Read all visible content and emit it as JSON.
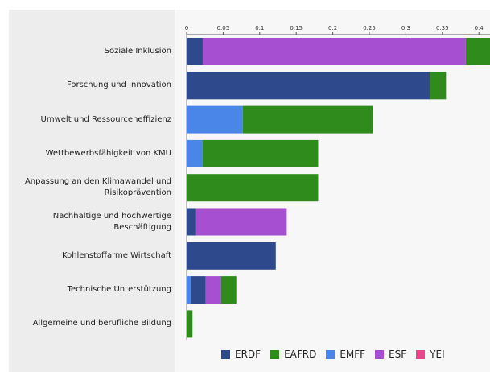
{
  "chart_data": {
    "type": "bar",
    "orientation": "horizontal",
    "stacked": true,
    "categories": [
      "Soziale Inklusion",
      "Forschung und Innovation",
      "Umwelt und Ressourceneffizienz",
      "Wettbewerbsfähigkeit von KMU",
      "Anpassung an den Klimawandel und Risikoprävention",
      "Nachhaltige und hochwertige Beschäftigung",
      "Kohlenstoffarme Wirtschaft",
      "Technische Unterstützung",
      "Allgemeine und berufliche Bildung"
    ],
    "series": [
      {
        "name": "ERDF",
        "color": "#2e4a8c",
        "values": [
          0.022,
          0.333,
          0,
          0,
          0,
          0.012,
          0.122,
          0.02,
          0
        ]
      },
      {
        "name": "EAFRD",
        "color": "#2e8b1c",
        "values": [
          0.045,
          0.022,
          0.178,
          0.158,
          0.18,
          0,
          0,
          0.021,
          0.008
        ]
      },
      {
        "name": "EMFF",
        "color": "#4a86e8",
        "values": [
          0,
          0,
          0.077,
          0.022,
          0,
          0,
          0,
          0.006,
          0
        ]
      },
      {
        "name": "ESF",
        "color": "#a64fd0",
        "values": [
          0.36,
          0,
          0,
          0,
          0,
          0.125,
          0,
          0.021,
          0
        ]
      },
      {
        "name": "YEI",
        "color": "#e8488a",
        "values": [
          0,
          0,
          0,
          0,
          0,
          0,
          0,
          0,
          0
        ]
      }
    ],
    "stack_order": [
      "EMFF",
      "ERDF",
      "ESF",
      "EAFRD",
      "YEI"
    ],
    "xlim": [
      0,
      0.41
    ],
    "xticks": [
      "0",
      "0.05",
      "0.1",
      "0.15",
      "0.2",
      "0.25",
      "0.3",
      "0.35",
      "0.4"
    ],
    "xtick_values": [
      0,
      0.05,
      0.1,
      0.15,
      0.2,
      0.25,
      0.3,
      0.35,
      0.4
    ],
    "grid": false,
    "legend_position": "bottom"
  }
}
